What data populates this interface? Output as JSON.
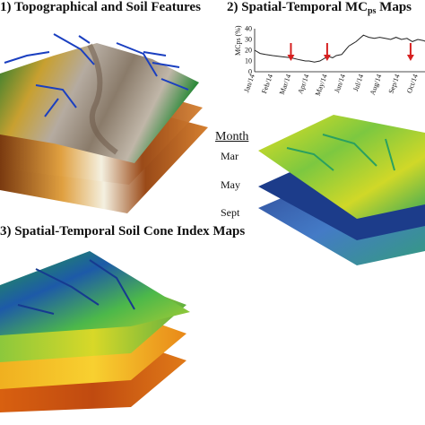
{
  "panels": {
    "topo": {
      "title": "1) Topographical and Soil Features"
    },
    "mc": {
      "title_main": "2) Spatial-Temporal MC",
      "title_sub": "ps",
      "title_end": " Maps"
    },
    "cone": {
      "title": "3) Spatial-Temporal Soil Cone Index Maps"
    }
  },
  "legend": {
    "heading": "Month",
    "months": [
      "Mar",
      "May",
      "Sept"
    ]
  },
  "chart_data": {
    "type": "line",
    "ylabel": "MCps (%)",
    "x_ticks": [
      "Jan/14",
      "Feb/14",
      "Mar/14",
      "Apr/14",
      "May/14",
      "Jun/14",
      "Jul/14",
      "Aug/14",
      "Sep/14",
      "Oct/14"
    ],
    "ylim": [
      0,
      40
    ],
    "y_ticks": [
      0,
      10,
      20,
      30,
      40
    ],
    "series": [
      {
        "x": [
          0,
          0.3,
          0.6,
          1.0,
          1.5,
          2.0,
          2.5,
          2.8,
          3.0,
          3.3,
          3.6,
          3.9,
          4.1,
          4.3,
          4.5,
          4.8,
          5.0,
          5.2,
          5.4,
          5.6,
          5.8,
          6.0,
          6.3,
          6.6,
          6.9,
          7.2,
          7.5,
          7.8,
          8.1,
          8.4,
          8.7,
          9.0,
          9.3,
          9.6,
          10.0
        ],
        "values": [
          20,
          17,
          16,
          15,
          14,
          13,
          11,
          10,
          10,
          9,
          10,
          13,
          14,
          13,
          15,
          16,
          20,
          24,
          26,
          28,
          31,
          34,
          32,
          31,
          32,
          31,
          30,
          32,
          30,
          31,
          28,
          30,
          29,
          27,
          30
        ]
      }
    ],
    "arrows_at_month": [
      2,
      4,
      8.6
    ],
    "arrow_color": "#d62020"
  }
}
